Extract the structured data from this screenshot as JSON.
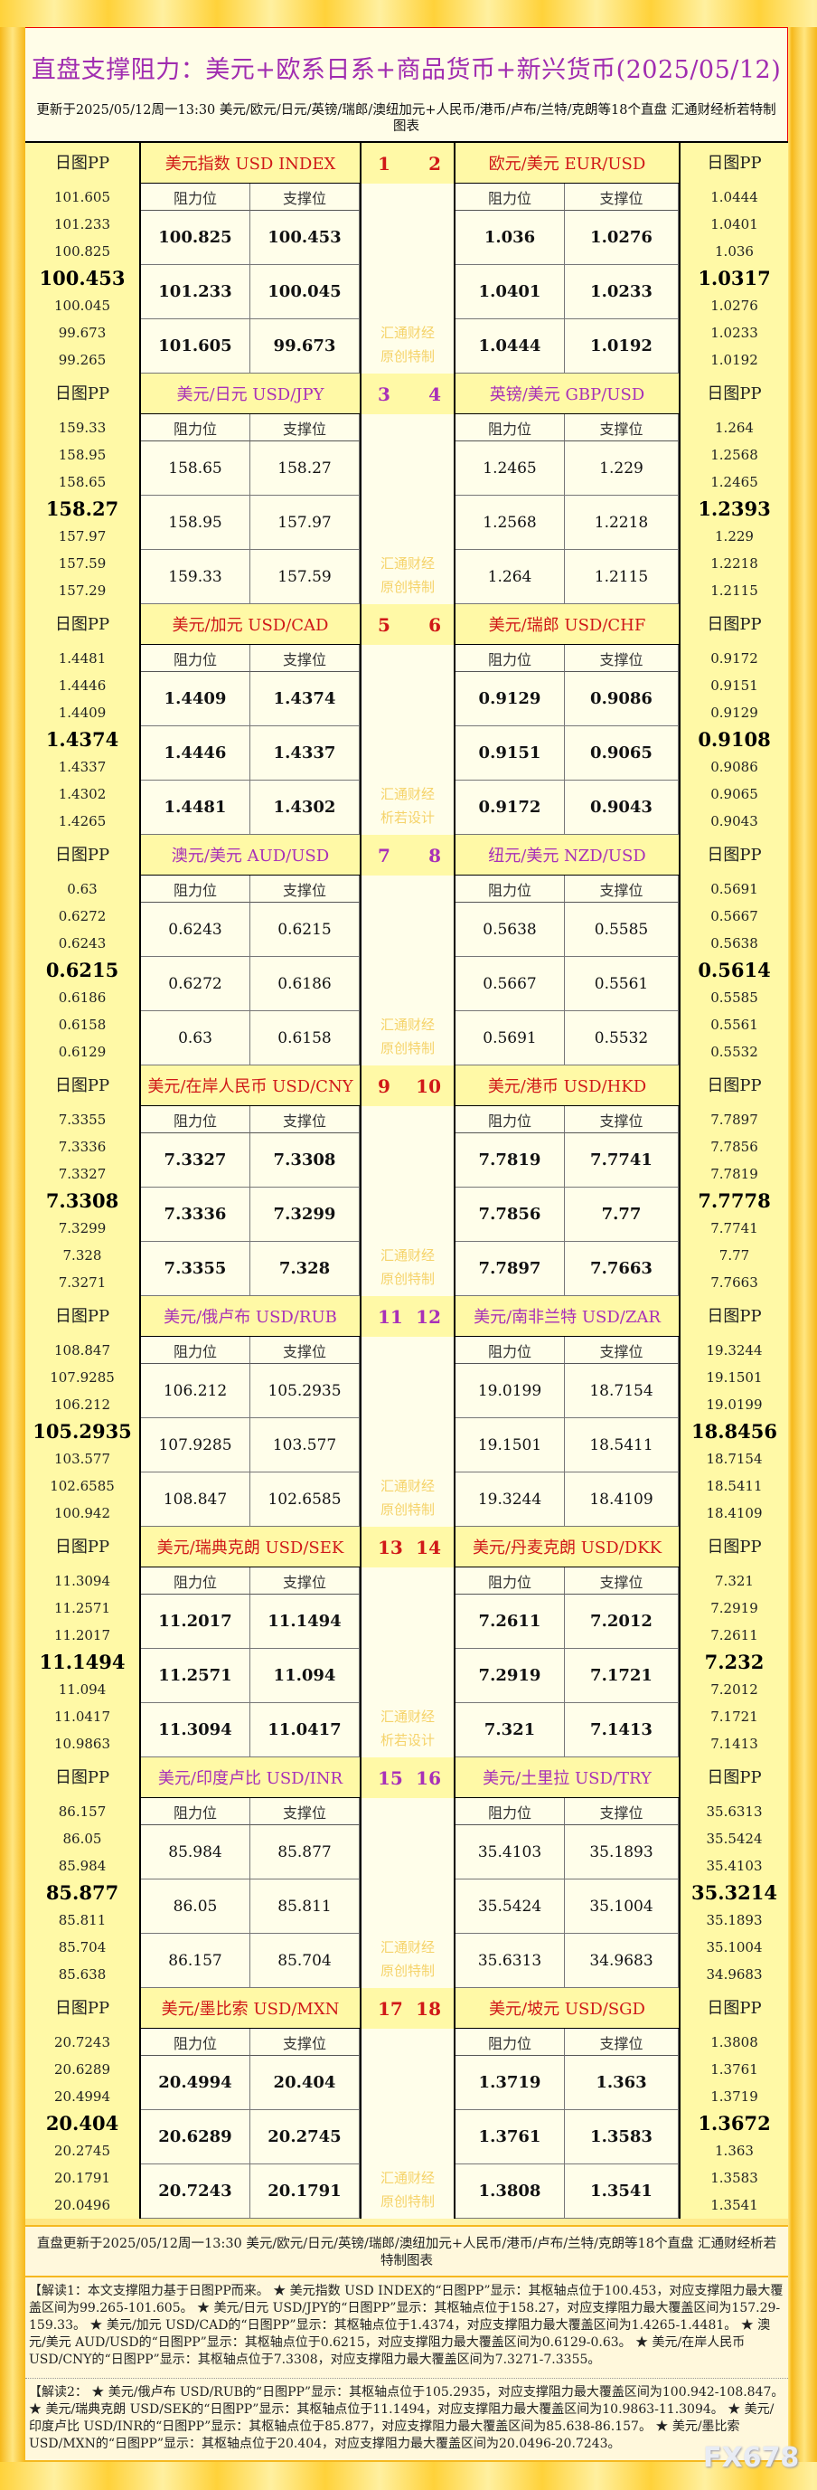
{
  "title": "直盘支撑阻力：美元+欧系日系+商品货币+新兴货币(2025/05/12)",
  "subtitle": "更新于2025/05/12周一13:30 美元/欧元/日元/英镑/瑞郎/澳纽加元+人民币/港币/卢布/兰特/克朗等18个直盘 汇通财经析若特制图表",
  "labels": {
    "pp": "日图PP",
    "resistance": "阻力位",
    "support": "支撑位"
  },
  "colors": {
    "odd_title": "#d01818",
    "even_title": "#a830b8",
    "watermark": "#f5d36a"
  },
  "blocks": [
    {
      "nums": [
        "1",
        "2"
      ],
      "wm": [
        "汇通财经",
        "原创特制"
      ],
      "left": {
        "pair": "美元指数 USD INDEX",
        "pp": [
          "101.605",
          "101.233",
          "100.825",
          "100.453",
          "100.045",
          "99.673",
          "99.265"
        ],
        "rows": [
          [
            "100.825",
            "100.453"
          ],
          [
            "101.233",
            "100.045"
          ],
          [
            "101.605",
            "99.673"
          ]
        ]
      },
      "right": {
        "pair": "欧元/美元 EUR/USD",
        "pp": [
          "1.0444",
          "1.0401",
          "1.036",
          "1.0317",
          "1.0276",
          "1.0233",
          "1.0192"
        ],
        "rows": [
          [
            "1.036",
            "1.0276"
          ],
          [
            "1.0401",
            "1.0233"
          ],
          [
            "1.0444",
            "1.0192"
          ]
        ]
      }
    },
    {
      "nums": [
        "3",
        "4"
      ],
      "wm": [
        "汇通财经",
        "原创特制"
      ],
      "left": {
        "pair": "美元/日元 USD/JPY",
        "pp": [
          "159.33",
          "158.95",
          "158.65",
          "158.27",
          "157.97",
          "157.59",
          "157.29"
        ],
        "rows": [
          [
            "158.65",
            "158.27"
          ],
          [
            "158.95",
            "157.97"
          ],
          [
            "159.33",
            "157.59"
          ]
        ]
      },
      "right": {
        "pair": "英镑/美元 GBP/USD",
        "pp": [
          "1.264",
          "1.2568",
          "1.2465",
          "1.2393",
          "1.229",
          "1.2218",
          "1.2115"
        ],
        "rows": [
          [
            "1.2465",
            "1.229"
          ],
          [
            "1.2568",
            "1.2218"
          ],
          [
            "1.264",
            "1.2115"
          ]
        ]
      }
    },
    {
      "nums": [
        "5",
        "6"
      ],
      "wm": [
        "汇通财经",
        "析若设计"
      ],
      "left": {
        "pair": "美元/加元 USD/CAD",
        "pp": [
          "1.4481",
          "1.4446",
          "1.4409",
          "1.4374",
          "1.4337",
          "1.4302",
          "1.4265"
        ],
        "rows": [
          [
            "1.4409",
            "1.4374"
          ],
          [
            "1.4446",
            "1.4337"
          ],
          [
            "1.4481",
            "1.4302"
          ]
        ]
      },
      "right": {
        "pair": "美元/瑞郎 USD/CHF",
        "pp": [
          "0.9172",
          "0.9151",
          "0.9129",
          "0.9108",
          "0.9086",
          "0.9065",
          "0.9043"
        ],
        "rows": [
          [
            "0.9129",
            "0.9086"
          ],
          [
            "0.9151",
            "0.9065"
          ],
          [
            "0.9172",
            "0.9043"
          ]
        ]
      }
    },
    {
      "nums": [
        "7",
        "8"
      ],
      "wm": [
        "汇通财经",
        "原创特制"
      ],
      "left": {
        "pair": "澳元/美元 AUD/USD",
        "pp": [
          "0.63",
          "0.6272",
          "0.6243",
          "0.6215",
          "0.6186",
          "0.6158",
          "0.6129"
        ],
        "rows": [
          [
            "0.6243",
            "0.6215"
          ],
          [
            "0.6272",
            "0.6186"
          ],
          [
            "0.63",
            "0.6158"
          ]
        ]
      },
      "right": {
        "pair": "纽元/美元 NZD/USD",
        "pp": [
          "0.5691",
          "0.5667",
          "0.5638",
          "0.5614",
          "0.5585",
          "0.5561",
          "0.5532"
        ],
        "rows": [
          [
            "0.5638",
            "0.5585"
          ],
          [
            "0.5667",
            "0.5561"
          ],
          [
            "0.5691",
            "0.5532"
          ]
        ]
      }
    },
    {
      "nums": [
        "9",
        "10"
      ],
      "wm": [
        "汇通财经",
        "原创特制"
      ],
      "left": {
        "pair": "美元/在岸人民币 USD/CNY",
        "pp": [
          "7.3355",
          "7.3336",
          "7.3327",
          "7.3308",
          "7.3299",
          "7.328",
          "7.3271"
        ],
        "rows": [
          [
            "7.3327",
            "7.3308"
          ],
          [
            "7.3336",
            "7.3299"
          ],
          [
            "7.3355",
            "7.328"
          ]
        ]
      },
      "right": {
        "pair": "美元/港币 USD/HKD",
        "pp": [
          "7.7897",
          "7.7856",
          "7.7819",
          "7.7778",
          "7.7741",
          "7.77",
          "7.7663"
        ],
        "rows": [
          [
            "7.7819",
            "7.7741"
          ],
          [
            "7.7856",
            "7.77"
          ],
          [
            "7.7897",
            "7.7663"
          ]
        ]
      }
    },
    {
      "nums": [
        "11",
        "12"
      ],
      "wm": [
        "汇通财经",
        "原创特制"
      ],
      "left": {
        "pair": "美元/俄卢布 USD/RUB",
        "pp": [
          "108.847",
          "107.9285",
          "106.212",
          "105.2935",
          "103.577",
          "102.6585",
          "100.942"
        ],
        "rows": [
          [
            "106.212",
            "105.2935"
          ],
          [
            "107.9285",
            "103.577"
          ],
          [
            "108.847",
            "102.6585"
          ]
        ]
      },
      "right": {
        "pair": "美元/南非兰特 USD/ZAR",
        "pp": [
          "19.3244",
          "19.1501",
          "19.0199",
          "18.8456",
          "18.7154",
          "18.5411",
          "18.4109"
        ],
        "rows": [
          [
            "19.0199",
            "18.7154"
          ],
          [
            "19.1501",
            "18.5411"
          ],
          [
            "19.3244",
            "18.4109"
          ]
        ]
      }
    },
    {
      "nums": [
        "13",
        "14"
      ],
      "wm": [
        "汇通财经",
        "析若设计"
      ],
      "left": {
        "pair": "美元/瑞典克朗 USD/SEK",
        "pp": [
          "11.3094",
          "11.2571",
          "11.2017",
          "11.1494",
          "11.094",
          "11.0417",
          "10.9863"
        ],
        "rows": [
          [
            "11.2017",
            "11.1494"
          ],
          [
            "11.2571",
            "11.094"
          ],
          [
            "11.3094",
            "11.0417"
          ]
        ]
      },
      "right": {
        "pair": "美元/丹麦克朗 USD/DKK",
        "pp": [
          "7.321",
          "7.2919",
          "7.2611",
          "7.232",
          "7.2012",
          "7.1721",
          "7.1413"
        ],
        "rows": [
          [
            "7.2611",
            "7.2012"
          ],
          [
            "7.2919",
            "7.1721"
          ],
          [
            "7.321",
            "7.1413"
          ]
        ]
      }
    },
    {
      "nums": [
        "15",
        "16"
      ],
      "wm": [
        "汇通财经",
        "原创特制"
      ],
      "left": {
        "pair": "美元/印度卢比 USD/INR",
        "pp": [
          "86.157",
          "86.05",
          "85.984",
          "85.877",
          "85.811",
          "85.704",
          "85.638"
        ],
        "rows": [
          [
            "85.984",
            "85.877"
          ],
          [
            "86.05",
            "85.811"
          ],
          [
            "86.157",
            "85.704"
          ]
        ]
      },
      "right": {
        "pair": "美元/土里拉 USD/TRY",
        "pp": [
          "35.6313",
          "35.5424",
          "35.4103",
          "35.3214",
          "35.1893",
          "35.1004",
          "34.9683"
        ],
        "rows": [
          [
            "35.4103",
            "35.1893"
          ],
          [
            "35.5424",
            "35.1004"
          ],
          [
            "35.6313",
            "34.9683"
          ]
        ]
      }
    },
    {
      "nums": [
        "17",
        "18"
      ],
      "wm": [
        "汇通财经",
        "原创特制"
      ],
      "left": {
        "pair": "美元/墨比索 USD/MXN",
        "pp": [
          "20.7243",
          "20.6289",
          "20.4994",
          "20.404",
          "20.2745",
          "20.1791",
          "20.0496"
        ],
        "rows": [
          [
            "20.4994",
            "20.404"
          ],
          [
            "20.6289",
            "20.2745"
          ],
          [
            "20.7243",
            "20.1791"
          ]
        ]
      },
      "right": {
        "pair": "美元/坡元 USD/SGD",
        "pp": [
          "1.3808",
          "1.3761",
          "1.3719",
          "1.3672",
          "1.363",
          "1.3583",
          "1.3541"
        ],
        "rows": [
          [
            "1.3719",
            "1.363"
          ],
          [
            "1.3761",
            "1.3583"
          ],
          [
            "1.3808",
            "1.3541"
          ]
        ]
      }
    }
  ],
  "footer": {
    "update": "直盘更新于2025/05/12周一13:30 美元/欧元/日元/英镑/瑞郎/澳纽加元+人民币/港币/卢布/兰特/克朗等18个直盘 汇通财经析若特制图表",
    "note1": "【解读1：本文支撑阻力基于日图PP而来。 ★ 美元指数 USD INDEX的“日图PP”显示：其枢轴点位于100.453，对应支撑阻力最大覆盖区间为99.265-101.605。 ★ 美元/日元 USD/JPY的“日图PP”显示：其枢轴点位于158.27，对应支撑阻力最大覆盖区间为157.29-159.33。 ★ 美元/加元 USD/CAD的“日图PP”显示：其枢轴点位于1.4374，对应支撑阻力最大覆盖区间为1.4265-1.4481。 ★ 澳元/美元 AUD/USD的“日图PP”显示：其枢轴点位于0.6215，对应支撑阻力最大覆盖区间为0.6129-0.63。 ★ 美元/在岸人民币 USD/CNY的“日图PP”显示：其枢轴点位于7.3308，对应支撑阻力最大覆盖区间为7.3271-7.3355。",
    "note2": "【解读2： ★ 美元/俄卢布 USD/RUB的“日图PP”显示：其枢轴点位于105.2935，对应支撑阻力最大覆盖区间为100.942-108.847。 ★ 美元/瑞典克朗 USD/SEK的“日图PP”显示：其枢轴点位于11.1494，对应支撑阻力最大覆盖区间为10.9863-11.3094。 ★ 美元/印度卢比 USD/INR的“日图PP”显示：其枢轴点位于85.877，对应支撑阻力最大覆盖区间为85.638-86.157。 ★ 美元/墨比索 USD/MXN的“日图PP”显示：其枢轴点位于20.404，对应支撑阻力最大覆盖区间为20.0496-20.7243。"
  },
  "watermark": "FX678"
}
